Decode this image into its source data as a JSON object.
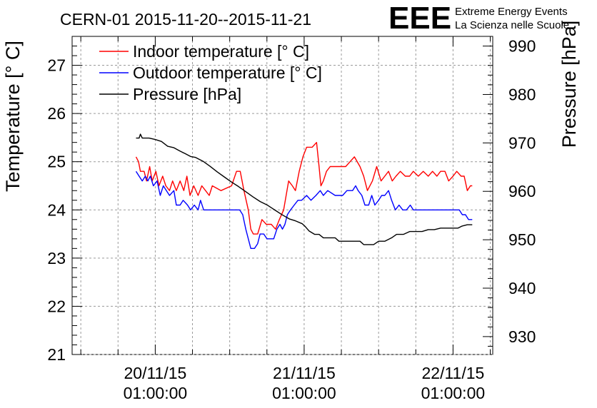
{
  "title": "CERN-01 2015-11-20--2015-11-21",
  "logo": {
    "mark": "EEE",
    "line1": "Extreme Energy Events",
    "line2": "La Scienza nelle Scuole",
    "color": "#0000ff"
  },
  "chart_data": {
    "type": "line",
    "title": "CERN-01 2015-11-20--2015-11-21",
    "xlabel": "",
    "ylabel": "Temperature [° C]",
    "y2label": "Pressure [hPa]",
    "x_unit": "hours since 20/11/15 01:00:00",
    "xlim": [
      -13.4,
      54.4
    ],
    "ylim": [
      21,
      27.6
    ],
    "y2lim": [
      926.3,
      992.0
    ],
    "grid": true,
    "legend_position": "top-left",
    "x_ticks": [
      {
        "x": 0,
        "date": "20/11/15",
        "time": "01:00:00"
      },
      {
        "x": 24,
        "date": "21/11/15",
        "time": "01:00:00"
      },
      {
        "x": 48,
        "date": "22/11/15",
        "time": "01:00:00"
      }
    ],
    "y_ticks": [
      21,
      22,
      23,
      24,
      25,
      26,
      27
    ],
    "y_tick_labels": [
      "21",
      "22",
      "23",
      "24",
      "25",
      "26",
      "27"
    ],
    "y2_ticks": [
      930,
      940,
      950,
      960,
      970,
      980,
      990
    ],
    "y2_tick_labels": [
      "930",
      "940",
      "950",
      "960",
      "970",
      "980",
      "990"
    ],
    "series": [
      {
        "name": "Indoor temperature [° C]",
        "axis": "left",
        "color": "#ff0000",
        "points": [
          [
            -3.1,
            25.1
          ],
          [
            -2.7,
            25.0
          ],
          [
            -2.4,
            24.8
          ],
          [
            -1.8,
            24.8
          ],
          [
            -1.4,
            24.6
          ],
          [
            -0.9,
            24.9
          ],
          [
            -0.5,
            24.6
          ],
          [
            0.1,
            24.8
          ],
          [
            0.6,
            24.5
          ],
          [
            1.2,
            24.7
          ],
          [
            1.7,
            24.5
          ],
          [
            2.3,
            24.4
          ],
          [
            2.8,
            24.6
          ],
          [
            3.4,
            24.4
          ],
          [
            4.0,
            24.6
          ],
          [
            4.6,
            24.4
          ],
          [
            5.1,
            24.7
          ],
          [
            5.6,
            24.3
          ],
          [
            6.2,
            24.5
          ],
          [
            6.9,
            24.3
          ],
          [
            7.5,
            24.5
          ],
          [
            8.1,
            24.4
          ],
          [
            8.7,
            24.3
          ],
          [
            9.2,
            24.5
          ],
          [
            10.6,
            24.4
          ],
          [
            12.3,
            24.5
          ],
          [
            13.1,
            24.8
          ],
          [
            13.7,
            24.8
          ],
          [
            14.3,
            24.4
          ],
          [
            15.0,
            24.0
          ],
          [
            15.4,
            23.6
          ],
          [
            15.8,
            23.5
          ],
          [
            16.5,
            23.5
          ],
          [
            17.2,
            23.8
          ],
          [
            17.9,
            23.7
          ],
          [
            18.7,
            23.7
          ],
          [
            19.4,
            23.6
          ],
          [
            20.0,
            23.8
          ],
          [
            20.7,
            24.0
          ],
          [
            21.5,
            24.6
          ],
          [
            22.1,
            24.5
          ],
          [
            22.6,
            24.4
          ],
          [
            23.2,
            24.8
          ],
          [
            23.8,
            25.1
          ],
          [
            24.4,
            25.3
          ],
          [
            25.3,
            25.3
          ],
          [
            26.0,
            25.4
          ],
          [
            26.4,
            24.9
          ],
          [
            26.7,
            24.5
          ],
          [
            27.1,
            24.6
          ],
          [
            27.6,
            24.8
          ],
          [
            28.2,
            24.9
          ],
          [
            29.2,
            24.9
          ],
          [
            29.8,
            24.9
          ],
          [
            30.7,
            24.9
          ],
          [
            31.4,
            25.0
          ],
          [
            32.1,
            25.1
          ],
          [
            33.0,
            24.9
          ],
          [
            33.6,
            24.7
          ],
          [
            34.2,
            24.4
          ],
          [
            35.0,
            24.6
          ],
          [
            35.7,
            24.9
          ],
          [
            36.4,
            24.6
          ],
          [
            37.0,
            24.7
          ],
          [
            37.6,
            24.8
          ],
          [
            38.2,
            24.6
          ],
          [
            38.8,
            24.7
          ],
          [
            39.5,
            24.8
          ],
          [
            40.3,
            24.7
          ],
          [
            41.0,
            24.7
          ],
          [
            41.6,
            24.8
          ],
          [
            42.4,
            24.7
          ],
          [
            43.2,
            24.8
          ],
          [
            44.0,
            24.7
          ],
          [
            44.7,
            24.8
          ],
          [
            45.4,
            24.7
          ],
          [
            46.0,
            24.8
          ],
          [
            46.7,
            24.8
          ],
          [
            47.3,
            24.6
          ],
          [
            48.0,
            24.7
          ],
          [
            48.6,
            24.8
          ],
          [
            49.3,
            24.7
          ],
          [
            49.8,
            24.7
          ],
          [
            50.3,
            24.4
          ],
          [
            50.8,
            24.5
          ],
          [
            51.1,
            24.5
          ]
        ]
      },
      {
        "name": "Outdoor temperature [° C]",
        "axis": "left",
        "color": "#0000ff",
        "points": [
          [
            -3.1,
            24.8
          ],
          [
            -2.6,
            24.7
          ],
          [
            -2.1,
            24.6
          ],
          [
            -1.6,
            24.7
          ],
          [
            -1.2,
            24.6
          ],
          [
            -0.8,
            24.7
          ],
          [
            -0.3,
            24.5
          ],
          [
            0.3,
            24.6
          ],
          [
            0.8,
            24.3
          ],
          [
            1.3,
            24.5
          ],
          [
            1.8,
            24.4
          ],
          [
            2.3,
            24.3
          ],
          [
            3.0,
            24.4
          ],
          [
            3.4,
            24.1
          ],
          [
            4.0,
            24.1
          ],
          [
            4.5,
            24.2
          ],
          [
            5.2,
            24.1
          ],
          [
            5.7,
            24.0
          ],
          [
            6.3,
            24.1
          ],
          [
            6.9,
            24.0
          ],
          [
            7.3,
            24.2
          ],
          [
            7.8,
            24.0
          ],
          [
            8.3,
            24.0
          ],
          [
            9.0,
            24.0
          ],
          [
            12.0,
            24.0
          ],
          [
            13.6,
            24.0
          ],
          [
            14.1,
            23.9
          ],
          [
            14.6,
            23.6
          ],
          [
            15.0,
            23.4
          ],
          [
            15.4,
            23.2
          ],
          [
            16.0,
            23.2
          ],
          [
            16.5,
            23.3
          ],
          [
            16.9,
            23.5
          ],
          [
            17.5,
            23.5
          ],
          [
            18.0,
            23.4
          ],
          [
            19.1,
            23.4
          ],
          [
            19.6,
            23.6
          ],
          [
            20.1,
            23.7
          ],
          [
            20.5,
            23.6
          ],
          [
            20.9,
            23.7
          ],
          [
            21.3,
            23.9
          ],
          [
            21.8,
            24.0
          ],
          [
            22.4,
            24.1
          ],
          [
            23.0,
            24.2
          ],
          [
            23.6,
            24.2
          ],
          [
            24.4,
            24.3
          ],
          [
            25.1,
            24.2
          ],
          [
            25.9,
            24.3
          ],
          [
            26.6,
            24.4
          ],
          [
            27.1,
            24.3
          ],
          [
            27.8,
            24.4
          ],
          [
            29.0,
            24.3
          ],
          [
            30.2,
            24.3
          ],
          [
            30.9,
            24.4
          ],
          [
            31.8,
            24.4
          ],
          [
            32.3,
            24.5
          ],
          [
            32.7,
            24.4
          ],
          [
            33.3,
            24.3
          ],
          [
            33.8,
            24.1
          ],
          [
            34.4,
            24.1
          ],
          [
            34.9,
            24.3
          ],
          [
            35.4,
            24.1
          ],
          [
            36.0,
            24.2
          ],
          [
            36.5,
            24.3
          ],
          [
            37.0,
            24.3
          ],
          [
            37.6,
            24.4
          ],
          [
            38.1,
            24.2
          ],
          [
            38.7,
            24.0
          ],
          [
            39.3,
            24.1
          ],
          [
            39.9,
            24.0
          ],
          [
            40.5,
            24.0
          ],
          [
            41.1,
            24.1
          ],
          [
            41.6,
            24.0
          ],
          [
            42.3,
            24.0
          ],
          [
            43.0,
            24.0
          ],
          [
            44.0,
            24.0
          ],
          [
            45.0,
            24.0
          ],
          [
            46.0,
            24.0
          ],
          [
            47.2,
            24.0
          ],
          [
            48.0,
            24.0
          ],
          [
            49.0,
            24.0
          ],
          [
            49.5,
            23.9
          ],
          [
            50.0,
            23.9
          ],
          [
            50.5,
            23.8
          ],
          [
            51.1,
            23.8
          ]
        ]
      },
      {
        "name": "Pressure [hPa]",
        "axis": "right",
        "color": "#000000",
        "points": [
          [
            -3.1,
            971.0
          ],
          [
            -2.6,
            971.0
          ],
          [
            -2.4,
            971.8
          ],
          [
            -2.1,
            971.0
          ],
          [
            -1.0,
            971.0
          ],
          [
            0.0,
            970.7
          ],
          [
            1.0,
            970.3
          ],
          [
            2.0,
            969.3
          ],
          [
            3.0,
            969.0
          ],
          [
            4.0,
            968.3
          ],
          [
            4.8,
            967.8
          ],
          [
            5.7,
            967.2
          ],
          [
            6.5,
            967.0
          ],
          [
            7.7,
            966.2
          ],
          [
            8.8,
            965.2
          ],
          [
            10.0,
            964.0
          ],
          [
            11.2,
            962.9
          ],
          [
            12.3,
            961.9
          ],
          [
            13.4,
            961.0
          ],
          [
            14.5,
            960.0
          ],
          [
            15.7,
            958.9
          ],
          [
            16.9,
            957.9
          ],
          [
            18.0,
            957.2
          ],
          [
            19.2,
            956.2
          ],
          [
            20.4,
            955.2
          ],
          [
            21.6,
            954.3
          ],
          [
            22.6,
            953.9
          ],
          [
            23.7,
            953.3
          ],
          [
            24.2,
            952.7
          ],
          [
            24.8,
            951.8
          ],
          [
            25.7,
            951.1
          ],
          [
            26.4,
            951.1
          ],
          [
            27.1,
            950.4
          ],
          [
            28.1,
            950.4
          ],
          [
            29.0,
            950.4
          ],
          [
            29.6,
            949.7
          ],
          [
            30.4,
            949.7
          ],
          [
            31.4,
            949.7
          ],
          [
            32.3,
            949.7
          ],
          [
            33.0,
            949.7
          ],
          [
            33.6,
            949.0
          ],
          [
            34.4,
            949.0
          ],
          [
            35.2,
            949.0
          ],
          [
            36.0,
            949.7
          ],
          [
            37.0,
            949.7
          ],
          [
            38.1,
            950.4
          ],
          [
            38.9,
            951.1
          ],
          [
            40.0,
            951.1
          ],
          [
            41.0,
            951.7
          ],
          [
            42.1,
            951.7
          ],
          [
            43.0,
            951.7
          ],
          [
            44.0,
            952.1
          ],
          [
            45.0,
            952.1
          ],
          [
            46.0,
            952.4
          ],
          [
            46.8,
            952.4
          ],
          [
            47.8,
            952.4
          ],
          [
            48.8,
            952.4
          ],
          [
            49.4,
            952.8
          ],
          [
            50.3,
            953.1
          ],
          [
            51.1,
            953.1
          ]
        ]
      }
    ]
  }
}
